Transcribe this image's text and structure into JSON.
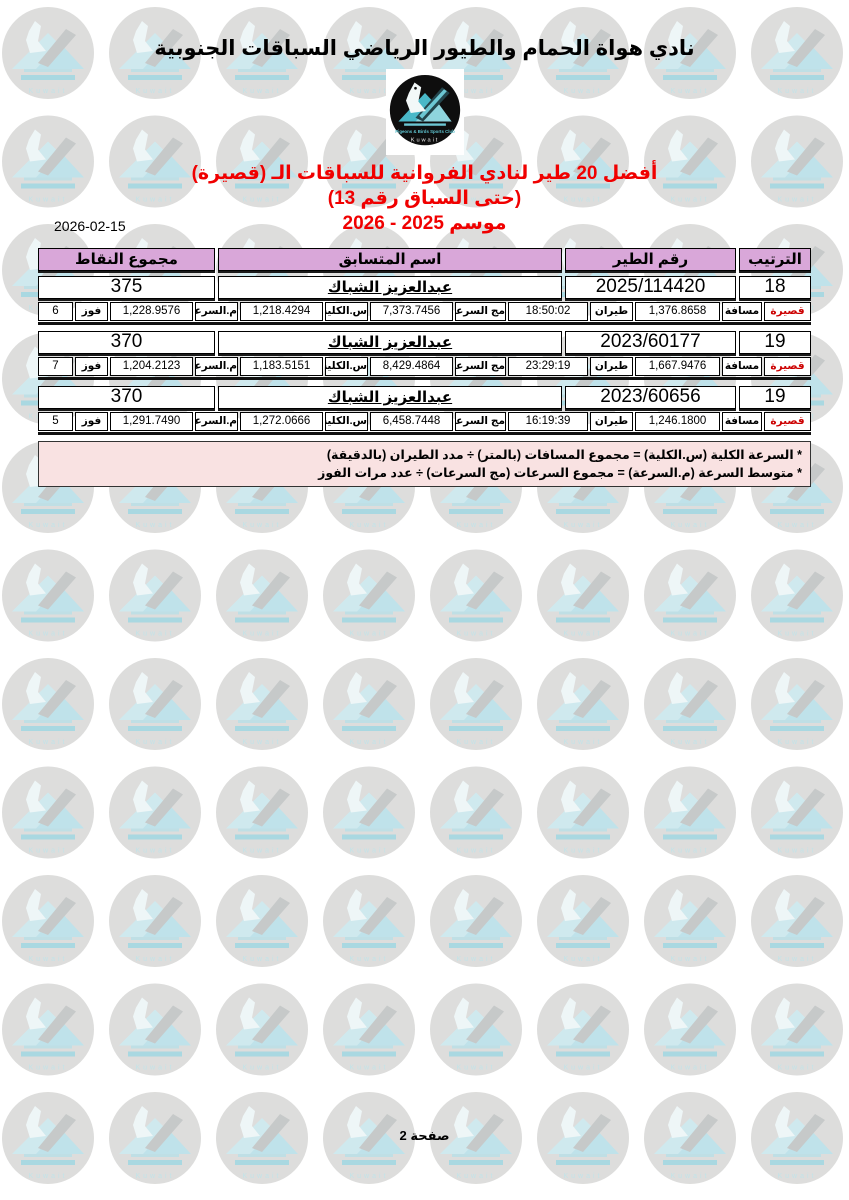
{
  "page": {
    "title": "نادي هواة الحمام والطيور الرياضي السباقات الجنوبية",
    "date": "2026-02-15",
    "heading_line1": "أفضل 20 طير لنادي الفروانية للسباقات الـ (قصيرة)",
    "heading_line2": "(حتى السباق رقم 13)",
    "heading_line3": "موسم 2025 - 2026",
    "footer": "صفحة 2"
  },
  "logo": {
    "club_name_en": "Pigeons & Birds Sports Club",
    "country": "Kuwait"
  },
  "colors": {
    "header_bg": "#d9a7d9",
    "notes_bg": "#f9e2e2",
    "heading_red": "#f00000",
    "category_red": "#cc0000",
    "logo_teal": "#49b8c8"
  },
  "table": {
    "headers": {
      "rank": "الترتيب",
      "bird_no": "رقم الطير",
      "name": "اسم المتسابق",
      "points": "مجموع النقاط"
    },
    "detail_labels": {
      "category": "قصيرة",
      "distance": "مسافة",
      "flight": "طيران",
      "sum_speeds": "مج السرعات",
      "total_speed": "س.الكلية",
      "avg_speed": "م.السرعة",
      "win": "فوز"
    },
    "records": [
      {
        "rank": "18",
        "bird_no": "2025/114420",
        "name": "عبدالعزيز الشباك",
        "points": "375",
        "distance": "1,376.8658",
        "flight_time": "18:50:02",
        "sum_speeds": "7,373.7456",
        "total_speed": "1,218.4294",
        "avg_speed": "1,228.9576",
        "wins": "6"
      },
      {
        "rank": "19",
        "bird_no": "2023/60177",
        "name": "عبدالعزيز الشباك",
        "points": "370",
        "distance": "1,667.9476",
        "flight_time": "23:29:19",
        "sum_speeds": "8,429.4864",
        "total_speed": "1,183.5151",
        "avg_speed": "1,204.2123",
        "wins": "7"
      },
      {
        "rank": "19",
        "bird_no": "2023/60656",
        "name": "عبدالعزيز الشباك",
        "points": "370",
        "distance": "1,246.1800",
        "flight_time": "16:19:39",
        "sum_speeds": "6,458.7448",
        "total_speed": "1,272.0666",
        "avg_speed": "1,291.7490",
        "wins": "5"
      }
    ]
  },
  "notes": [
    "* السرعة الكلية (س.الكلية) = مجموع المسافات (بالمتر) ÷ مدد الطيران (بالدقيقة)",
    "* متوسط السرعة (م.السرعة) = مجموع السرعات (مج السرعات) ÷ عدد مرات الفوز"
  ]
}
